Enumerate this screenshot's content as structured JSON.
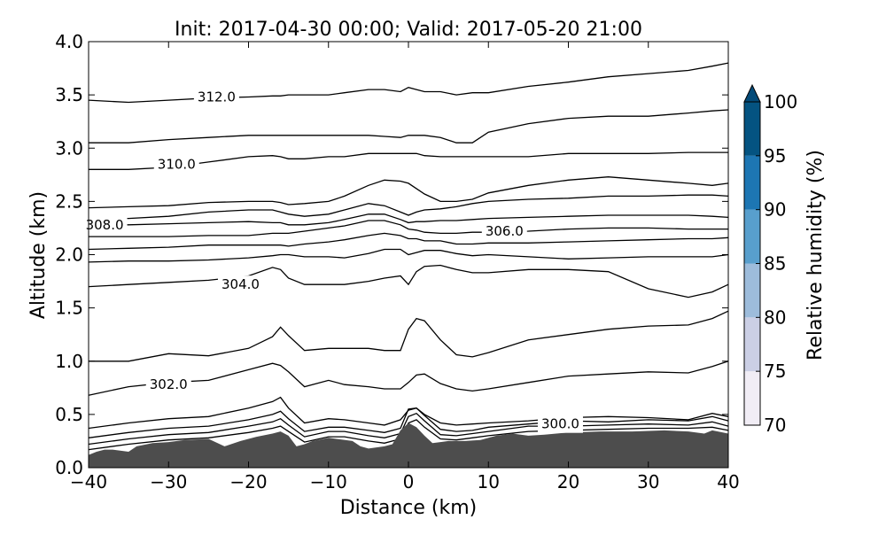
{
  "chart_data": {
    "type": "line",
    "title": "Init: 2017-04-30 00:00; Valid: 2017-05-20 21:00",
    "xlabel": "Distance (km)",
    "ylabel": "Altitude (km)",
    "xlim": [
      -40,
      40
    ],
    "ylim": [
      0.0,
      4.0
    ],
    "x_ticks": [
      -40,
      -30,
      -20,
      -10,
      0,
      10,
      20,
      30,
      40
    ],
    "x_tick_labels": [
      "−40",
      "−30",
      "−20",
      "−10",
      "0",
      "10",
      "20",
      "30",
      "40"
    ],
    "y_ticks": [
      0.0,
      0.5,
      1.0,
      1.5,
      2.0,
      2.5,
      3.0,
      3.5,
      4.0
    ],
    "y_tick_labels": [
      "0.0",
      "0.5",
      "1.0",
      "1.5",
      "2.0",
      "2.5",
      "3.0",
      "3.5",
      "4.0"
    ],
    "grid": false,
    "terrain": {
      "color": "#4d4d4d",
      "x": [
        -40,
        -39,
        -38,
        -37,
        -35,
        -34,
        -32,
        -30,
        -28,
        -25,
        -23,
        -21,
        -19,
        -17,
        -16,
        -15,
        -14,
        -13,
        -12,
        -10,
        -9,
        -7,
        -6,
        -5,
        -3,
        -2,
        -1,
        0,
        1,
        2,
        3,
        4,
        5,
        7,
        9,
        11,
        13,
        15,
        17,
        20,
        24,
        28,
        32,
        35,
        37,
        38,
        40
      ],
      "y": [
        0.12,
        0.15,
        0.17,
        0.17,
        0.15,
        0.2,
        0.23,
        0.24,
        0.26,
        0.27,
        0.2,
        0.25,
        0.29,
        0.32,
        0.34,
        0.3,
        0.2,
        0.22,
        0.25,
        0.28,
        0.27,
        0.25,
        0.2,
        0.18,
        0.2,
        0.22,
        0.35,
        0.42,
        0.38,
        0.3,
        0.23,
        0.24,
        0.25,
        0.25,
        0.26,
        0.3,
        0.32,
        0.3,
        0.31,
        0.33,
        0.34,
        0.34,
        0.35,
        0.34,
        0.32,
        0.35,
        0.32
      ]
    },
    "contour_x": [
      -40,
      -35,
      -30,
      -25,
      -20,
      -17,
      -16,
      -15,
      -13,
      -10,
      -8,
      -5,
      -3,
      -1,
      0,
      1,
      2,
      4,
      6,
      8,
      10,
      15,
      20,
      25,
      30,
      35,
      38,
      40
    ],
    "contours": [
      {
        "level": "",
        "label": "",
        "y": [
          0.17,
          0.22,
          0.26,
          0.28,
          0.33,
          0.37,
          0.39,
          0.34,
          0.24,
          0.29,
          0.29,
          0.25,
          0.23,
          0.27,
          0.42,
          0.45,
          0.38,
          0.27,
          0.26,
          0.28,
          0.3,
          0.34,
          0.35,
          0.36,
          0.37,
          0.37,
          0.38,
          0.35
        ]
      },
      {
        "level": "",
        "label": "",
        "y": [
          0.22,
          0.27,
          0.31,
          0.33,
          0.39,
          0.43,
          0.46,
          0.4,
          0.29,
          0.34,
          0.34,
          0.3,
          0.28,
          0.32,
          0.48,
          0.51,
          0.44,
          0.31,
          0.3,
          0.32,
          0.34,
          0.39,
          0.39,
          0.4,
          0.41,
          0.4,
          0.43,
          0.39
        ]
      },
      {
        "level": "",
        "label": "",
        "y": [
          0.28,
          0.33,
          0.37,
          0.39,
          0.45,
          0.5,
          0.53,
          0.46,
          0.34,
          0.38,
          0.38,
          0.35,
          0.33,
          0.37,
          0.55,
          0.56,
          0.49,
          0.36,
          0.34,
          0.35,
          0.38,
          0.41,
          0.44,
          0.43,
          0.45,
          0.44,
          0.48,
          0.44
        ]
      },
      {
        "level": "300.0",
        "label": "300.0",
        "label_x": 19,
        "label_y": 0.41,
        "y": [
          0.37,
          0.42,
          0.46,
          0.48,
          0.56,
          0.62,
          0.66,
          0.56,
          0.42,
          0.46,
          0.45,
          0.42,
          0.4,
          0.45,
          0.54,
          0.56,
          0.5,
          0.42,
          0.4,
          0.41,
          0.42,
          0.44,
          0.47,
          0.48,
          0.47,
          0.45,
          0.51,
          0.48
        ]
      },
      {
        "level": "302.0",
        "label": "302.0",
        "label_x": -30,
        "label_y": 0.78,
        "y": [
          0.68,
          0.76,
          0.8,
          0.82,
          0.92,
          0.98,
          0.96,
          0.9,
          0.76,
          0.82,
          0.78,
          0.76,
          0.74,
          0.74,
          0.8,
          0.87,
          0.88,
          0.79,
          0.74,
          0.72,
          0.74,
          0.8,
          0.86,
          0.88,
          0.9,
          0.89,
          0.95,
          1.0
        ]
      },
      {
        "level": "",
        "label": "",
        "y": [
          1.0,
          1.0,
          1.07,
          1.05,
          1.12,
          1.23,
          1.32,
          1.24,
          1.1,
          1.12,
          1.12,
          1.12,
          1.1,
          1.1,
          1.3,
          1.4,
          1.38,
          1.2,
          1.06,
          1.04,
          1.08,
          1.2,
          1.25,
          1.3,
          1.33,
          1.34,
          1.4,
          1.47
        ]
      },
      {
        "level": "304.0",
        "label": "304.0",
        "label_x": -21,
        "label_y": 1.72,
        "y": [
          1.7,
          1.72,
          1.74,
          1.76,
          1.8,
          1.88,
          1.86,
          1.78,
          1.72,
          1.72,
          1.72,
          1.75,
          1.78,
          1.8,
          1.72,
          1.84,
          1.89,
          1.9,
          1.86,
          1.83,
          1.83,
          1.86,
          1.86,
          1.84,
          1.68,
          1.6,
          1.65,
          1.72
        ]
      },
      {
        "level": "",
        "label": "",
        "y": [
          1.93,
          1.94,
          1.94,
          1.95,
          1.97,
          1.99,
          2.0,
          2.0,
          1.98,
          1.98,
          1.97,
          2.01,
          2.05,
          2.05,
          2.0,
          2.02,
          2.04,
          2.04,
          2.01,
          1.99,
          2.0,
          1.98,
          1.96,
          1.97,
          1.98,
          1.98,
          1.98,
          2.0
        ]
      },
      {
        "level": "",
        "label": "",
        "y": [
          2.05,
          2.06,
          2.07,
          2.09,
          2.09,
          2.09,
          2.09,
          2.08,
          2.1,
          2.12,
          2.14,
          2.18,
          2.2,
          2.18,
          2.15,
          2.15,
          2.13,
          2.13,
          2.1,
          2.1,
          2.11,
          2.11,
          2.12,
          2.13,
          2.14,
          2.15,
          2.15,
          2.16
        ]
      },
      {
        "level": "306.0",
        "label": "306.0",
        "label_x": 12,
        "label_y": 2.22,
        "y": [
          2.17,
          2.17,
          2.17,
          2.18,
          2.18,
          2.2,
          2.2,
          2.2,
          2.22,
          2.25,
          2.27,
          2.32,
          2.32,
          2.28,
          2.24,
          2.23,
          2.21,
          2.2,
          2.2,
          2.21,
          2.21,
          2.22,
          2.24,
          2.25,
          2.25,
          2.24,
          2.24,
          2.24
        ]
      },
      {
        "level": "308.0",
        "label": "308.0",
        "label_x": -38,
        "label_y": 2.28,
        "y": [
          2.28,
          2.28,
          2.29,
          2.3,
          2.31,
          2.3,
          2.3,
          2.28,
          2.28,
          2.3,
          2.33,
          2.38,
          2.38,
          2.33,
          2.3,
          2.31,
          2.31,
          2.32,
          2.32,
          2.33,
          2.34,
          2.35,
          2.36,
          2.37,
          2.37,
          2.37,
          2.36,
          2.35
        ]
      },
      {
        "level": "",
        "label": "",
        "y": [
          2.34,
          2.34,
          2.36,
          2.4,
          2.42,
          2.42,
          2.4,
          2.38,
          2.36,
          2.38,
          2.42,
          2.48,
          2.46,
          2.4,
          2.37,
          2.4,
          2.42,
          2.43,
          2.45,
          2.48,
          2.5,
          2.52,
          2.53,
          2.55,
          2.55,
          2.56,
          2.56,
          2.55
        ]
      },
      {
        "level": "",
        "label": "",
        "y": [
          2.44,
          2.45,
          2.46,
          2.49,
          2.5,
          2.5,
          2.49,
          2.47,
          2.48,
          2.5,
          2.55,
          2.65,
          2.7,
          2.69,
          2.67,
          2.62,
          2.57,
          2.5,
          2.5,
          2.52,
          2.58,
          2.65,
          2.7,
          2.73,
          2.7,
          2.67,
          2.65,
          2.67
        ]
      },
      {
        "level": "310.0",
        "label": "310.0",
        "label_x": -29,
        "label_y": 2.85,
        "y": [
          2.8,
          2.8,
          2.82,
          2.87,
          2.92,
          2.93,
          2.92,
          2.9,
          2.9,
          2.92,
          2.92,
          2.95,
          2.95,
          2.95,
          2.95,
          2.95,
          2.93,
          2.92,
          2.92,
          2.92,
          2.92,
          2.92,
          2.95,
          2.95,
          2.95,
          2.96,
          2.96,
          2.96
        ]
      },
      {
        "level": "",
        "label": "",
        "y": [
          3.05,
          3.05,
          3.08,
          3.1,
          3.12,
          3.12,
          3.12,
          3.12,
          3.12,
          3.12,
          3.12,
          3.12,
          3.11,
          3.1,
          3.12,
          3.12,
          3.12,
          3.1,
          3.05,
          3.05,
          3.15,
          3.23,
          3.28,
          3.3,
          3.3,
          3.33,
          3.35,
          3.36
        ]
      },
      {
        "level": "312.0",
        "label": "312.0",
        "label_x": -24,
        "label_y": 3.48,
        "y": [
          3.45,
          3.43,
          3.45,
          3.47,
          3.48,
          3.49,
          3.49,
          3.5,
          3.5,
          3.5,
          3.52,
          3.55,
          3.55,
          3.53,
          3.57,
          3.55,
          3.53,
          3.53,
          3.5,
          3.52,
          3.52,
          3.58,
          3.62,
          3.67,
          3.7,
          3.73,
          3.77,
          3.8
        ]
      }
    ],
    "colorbar": {
      "label": "Relative humidity (%)",
      "ticks": [
        "70",
        "75",
        "80",
        "85",
        "90",
        "95",
        "100"
      ],
      "bins": [
        {
          "from": 70,
          "to": 75,
          "color": "#f1edf5"
        },
        {
          "from": 75,
          "to": 80,
          "color": "#cbcfe5"
        },
        {
          "from": 80,
          "to": 85,
          "color": "#9dbcdb"
        },
        {
          "from": 85,
          "to": 90,
          "color": "#589fcd"
        },
        {
          "from": 90,
          "to": 95,
          "color": "#1d76b3"
        },
        {
          "from": 95,
          "to": 100,
          "color": "#045381"
        }
      ],
      "extend_color": "#034a78",
      "extend": "max"
    }
  }
}
